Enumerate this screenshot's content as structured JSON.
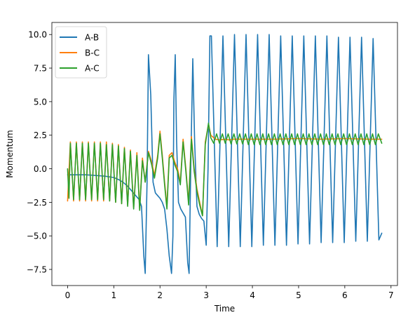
{
  "chart_data": {
    "type": "line",
    "title": "",
    "xlabel": "Time",
    "ylabel": "Momentum",
    "xlim": [
      -0.34,
      7.14
    ],
    "ylim": [
      -8.7,
      10.9
    ],
    "xticks": [
      0,
      1,
      2,
      3,
      4,
      5,
      6,
      7
    ],
    "xtick_labels": [
      "0",
      "1",
      "2",
      "3",
      "4",
      "5",
      "6",
      "7"
    ],
    "yticks": [
      -7.5,
      -5.0,
      -2.5,
      0.0,
      2.5,
      5.0,
      7.5,
      10.0
    ],
    "ytick_labels": [
      "−7.5",
      "−5.0",
      "−2.5",
      "0.0",
      "2.5",
      "5.0",
      "7.5",
      "10.0"
    ],
    "grid": false,
    "legend_position": "top-left",
    "series": [
      {
        "name": "A-B",
        "color": "#1f77b4",
        "x": [
          0.0,
          0.2,
          0.4,
          0.6,
          0.8,
          1.0,
          1.1,
          1.2,
          1.3,
          1.35,
          1.4,
          1.45,
          1.5,
          1.55,
          1.6,
          1.65,
          1.68,
          1.72,
          1.75,
          1.8,
          1.85,
          1.9,
          1.95,
          2.0,
          2.05,
          2.1,
          2.15,
          2.2,
          2.25,
          2.28,
          2.3,
          2.33,
          2.36,
          2.4,
          2.45,
          2.5,
          2.55,
          2.6,
          2.63,
          2.67,
          2.71,
          2.75,
          2.8,
          2.85,
          2.9,
          2.95,
          3.0,
          3.04,
          3.08,
          3.1125,
          3.2375,
          3.3625,
          3.4875,
          3.6125,
          3.7375,
          3.8625,
          3.9875,
          4.1125,
          4.2375,
          4.3625,
          4.4875,
          4.6125,
          4.7375,
          4.8625,
          4.9875,
          5.1125,
          5.2375,
          5.3625,
          5.4875,
          5.6125,
          5.7375,
          5.8625,
          5.9875,
          6.1125,
          6.2375,
          6.3625,
          6.4875,
          6.6125,
          6.7375,
          6.8
        ],
        "y": [
          -0.45,
          -0.45,
          -0.45,
          -0.5,
          -0.55,
          -0.65,
          -0.8,
          -1.0,
          -1.3,
          -1.5,
          -1.7,
          -1.9,
          -2.1,
          -2.3,
          -2.8,
          -6.5,
          -7.8,
          -1.0,
          8.5,
          5.5,
          -1.0,
          -1.8,
          -2.0,
          -2.2,
          -2.5,
          -3.0,
          -4.5,
          -6.5,
          -7.8,
          -5.0,
          5.0,
          8.5,
          2.0,
          -2.5,
          -3.0,
          -3.3,
          -3.6,
          -7.0,
          -7.8,
          1.0,
          8.2,
          2.0,
          -2.8,
          -3.4,
          -3.7,
          -3.9,
          -5.7,
          0.0,
          9.9,
          9.9,
          -5.8,
          9.9,
          -5.8,
          10.0,
          -5.8,
          10.0,
          -5.8,
          10.0,
          -5.7,
          10.0,
          -5.7,
          9.9,
          -5.7,
          9.9,
          -5.6,
          9.9,
          -5.6,
          9.9,
          -5.5,
          9.9,
          -5.5,
          9.8,
          -5.5,
          9.8,
          -5.4,
          9.8,
          -5.4,
          9.7,
          -5.3,
          -4.8
        ]
      },
      {
        "name": "B-C",
        "color": "#ff7f0e",
        "x": [
          0.0,
          0.06,
          0.13,
          0.19,
          0.26,
          0.32,
          0.39,
          0.45,
          0.52,
          0.58,
          0.65,
          0.71,
          0.78,
          0.84,
          0.91,
          0.97,
          1.04,
          1.1,
          1.17,
          1.23,
          1.3,
          1.36,
          1.43,
          1.5,
          1.56,
          1.62,
          1.68,
          1.75,
          1.82,
          1.88,
          1.95,
          2.0,
          2.05,
          2.1,
          2.15,
          2.2,
          2.26,
          2.32,
          2.38,
          2.44,
          2.5,
          2.56,
          2.62,
          2.68,
          2.74,
          2.8,
          2.86,
          2.92,
          2.98,
          3.05,
          3.1,
          3.2,
          3.3,
          3.4,
          3.5,
          3.6,
          3.8,
          4.0,
          4.5,
          5.0,
          5.5,
          6.0,
          6.5,
          6.8
        ],
        "y": [
          -2.4,
          2.0,
          -2.4,
          2.0,
          -2.4,
          2.0,
          -2.4,
          2.0,
          -2.4,
          2.0,
          -2.4,
          2.0,
          -2.4,
          2.0,
          -2.4,
          1.9,
          -2.5,
          1.8,
          -2.6,
          1.6,
          -2.7,
          1.4,
          -2.9,
          1.2,
          -3.0,
          0.8,
          -1.0,
          1.3,
          0.5,
          -0.5,
          1.0,
          2.8,
          1.0,
          -1.0,
          -2.8,
          1.0,
          1.2,
          0.5,
          0.0,
          -1.0,
          2.2,
          0.0,
          -2.5,
          2.4,
          0.0,
          -1.5,
          -2.5,
          -3.5,
          2.0,
          3.3,
          2.5,
          2.2,
          2.15,
          2.2,
          2.15,
          2.2,
          2.2,
          2.2,
          2.2,
          2.25,
          2.2,
          2.25,
          2.2,
          2.2
        ]
      },
      {
        "name": "A-C",
        "color": "#2ca02c",
        "x": [
          0.0,
          0.03,
          0.06,
          0.13,
          0.19,
          0.26,
          0.32,
          0.39,
          0.45,
          0.52,
          0.58,
          0.65,
          0.71,
          0.78,
          0.84,
          0.91,
          0.97,
          1.04,
          1.1,
          1.17,
          1.23,
          1.3,
          1.36,
          1.43,
          1.5,
          1.56,
          1.62,
          1.68,
          1.75,
          1.82,
          1.88,
          1.95,
          2.0,
          2.05,
          2.1,
          2.15,
          2.2,
          2.26,
          2.32,
          2.38,
          2.44,
          2.5,
          2.56,
          2.62,
          2.68,
          2.74,
          2.8,
          2.86,
          2.92,
          2.98,
          3.05,
          3.1,
          3.1625,
          3.225,
          3.2875,
          3.35,
          3.4125,
          3.475,
          3.5375,
          3.6,
          3.6625,
          3.725,
          3.7875,
          3.85,
          3.9125,
          3.975,
          4.0375,
          4.1,
          4.1625,
          4.225,
          4.2875,
          4.35,
          4.4125,
          4.475,
          4.5375,
          4.6,
          4.6625,
          4.725,
          4.7875,
          4.85,
          4.9125,
          4.975,
          5.0375,
          5.1,
          5.1625,
          5.225,
          5.2875,
          5.35,
          5.4125,
          5.475,
          5.5375,
          5.6,
          5.6625,
          5.725,
          5.7875,
          5.85,
          5.9125,
          5.975,
          6.0375,
          6.1,
          6.1625,
          6.225,
          6.2875,
          6.35,
          6.4125,
          6.475,
          6.5375,
          6.6,
          6.6625,
          6.725,
          6.8
        ],
        "y": [
          0.0,
          -2.2,
          1.9,
          -2.3,
          1.9,
          -2.3,
          1.9,
          -2.3,
          1.9,
          -2.3,
          1.9,
          -2.3,
          1.9,
          -2.3,
          1.8,
          -2.4,
          1.8,
          -2.5,
          1.7,
          -2.6,
          1.5,
          -2.8,
          1.3,
          -3.0,
          1.0,
          -3.1,
          0.6,
          -1.0,
          1.2,
          0.3,
          -0.7,
          0.8,
          2.6,
          0.8,
          -1.2,
          -3.0,
          0.8,
          1.0,
          0.3,
          -0.2,
          -1.2,
          2.0,
          -0.2,
          -2.7,
          2.2,
          -0.2,
          -1.7,
          -2.7,
          -3.5,
          1.8,
          3.4,
          2.3,
          1.9,
          2.6,
          1.9,
          2.6,
          1.9,
          2.6,
          1.85,
          2.6,
          1.85,
          2.6,
          1.85,
          2.6,
          1.8,
          2.6,
          1.8,
          2.6,
          1.8,
          2.6,
          1.8,
          2.6,
          1.8,
          2.6,
          1.8,
          2.6,
          1.8,
          2.6,
          1.8,
          2.6,
          1.8,
          2.6,
          1.8,
          2.6,
          1.8,
          2.6,
          1.8,
          2.6,
          1.8,
          2.6,
          1.8,
          2.6,
          1.8,
          2.6,
          1.8,
          2.6,
          1.8,
          2.6,
          1.8,
          2.6,
          1.8,
          2.6,
          1.8,
          2.6,
          1.8,
          2.6,
          1.8,
          2.6,
          1.8,
          2.6,
          1.9
        ]
      }
    ]
  }
}
